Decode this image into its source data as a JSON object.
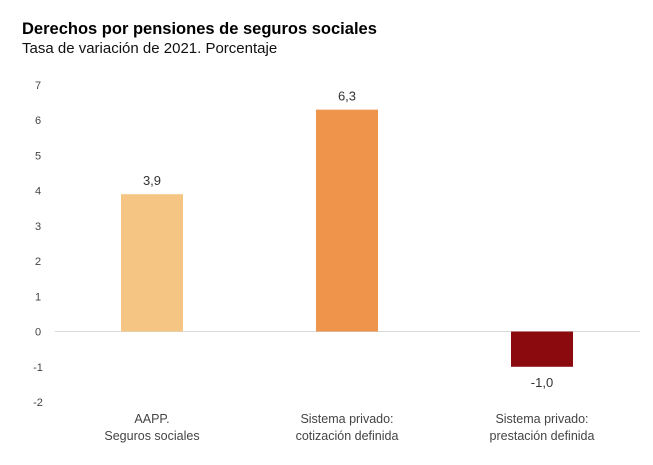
{
  "chart_data": {
    "type": "bar",
    "title": "Derechos por pensiones de seguros sociales",
    "subtitle": "Tasa de variación de 2021. Porcentaje",
    "categories": [
      [
        "AAPP.",
        "Seguros sociales"
      ],
      [
        "Sistema privado:",
        "cotización definida"
      ],
      [
        "Sistema privado:",
        "prestación definida"
      ]
    ],
    "values": [
      3.9,
      6.3,
      -1.0
    ],
    "data_labels": [
      "3,9",
      "6,3",
      "-1,0"
    ],
    "colors": [
      "#F5C584",
      "#EE944B",
      "#8B0A0E"
    ],
    "ylim": [
      -2,
      7
    ],
    "yticks": [
      7,
      6,
      5,
      4,
      3,
      2,
      1,
      0,
      -1,
      -2
    ],
    "grid": false,
    "xlabel": "",
    "ylabel": ""
  }
}
